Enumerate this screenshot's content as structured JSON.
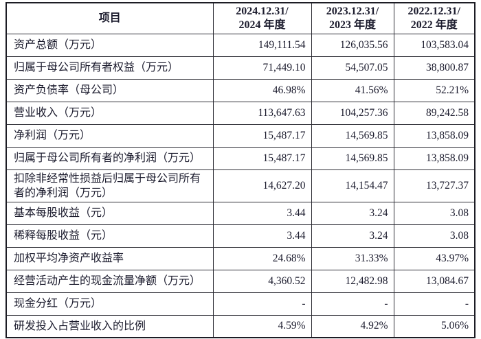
{
  "table": {
    "header": {
      "item_label": "项目",
      "periods": [
        {
          "line1": "2024.12.31/",
          "line2": "2024 年度"
        },
        {
          "line1": "2023.12.31/",
          "line2": "2023 年度"
        },
        {
          "line1": "2022.12.31/",
          "line2": "2022 年度"
        }
      ]
    },
    "rows": [
      {
        "label": "资产总额（万元）",
        "values": [
          "149,111.54",
          "126,035.56",
          "103,583.04"
        ]
      },
      {
        "label": "归属于母公司所有者权益（万元）",
        "values": [
          "71,449.10",
          "54,507.05",
          "38,800.87"
        ]
      },
      {
        "label": "资产负债率（母公司）",
        "values": [
          "46.98%",
          "41.56%",
          "52.21%"
        ]
      },
      {
        "label": "营业收入（万元）",
        "values": [
          "113,647.63",
          "104,257.36",
          "89,242.58"
        ]
      },
      {
        "label": "净利润（万元）",
        "values": [
          "15,487.17",
          "14,569.85",
          "13,858.09"
        ]
      },
      {
        "label": "归属于母公司所有者的净利润（万元）",
        "values": [
          "15,487.17",
          "14,569.85",
          "13,858.09"
        ]
      },
      {
        "label": "扣除非经常性损益后归属于母公司所有者的净利润（万元）",
        "values": [
          "14,627.20",
          "14,154.47",
          "13,727.37"
        ]
      },
      {
        "label": "基本每股收益（元）",
        "values": [
          "3.44",
          "3.24",
          "3.08"
        ]
      },
      {
        "label": "稀释每股收益（元）",
        "values": [
          "3.44",
          "3.24",
          "3.08"
        ]
      },
      {
        "label": "加权平均净资产收益率",
        "values": [
          "24.68%",
          "31.33%",
          "43.97%"
        ]
      },
      {
        "label": "经营活动产生的现金流量净额（万元）",
        "values": [
          "4,360.52",
          "12,482.98",
          "13,084.67"
        ]
      },
      {
        "label": "现金分红（万元）",
        "values": [
          "-",
          "-",
          "-"
        ]
      },
      {
        "label": "研发投入占营业收入的比例",
        "values": [
          "4.59%",
          "4.92%",
          "5.06%"
        ]
      }
    ]
  }
}
